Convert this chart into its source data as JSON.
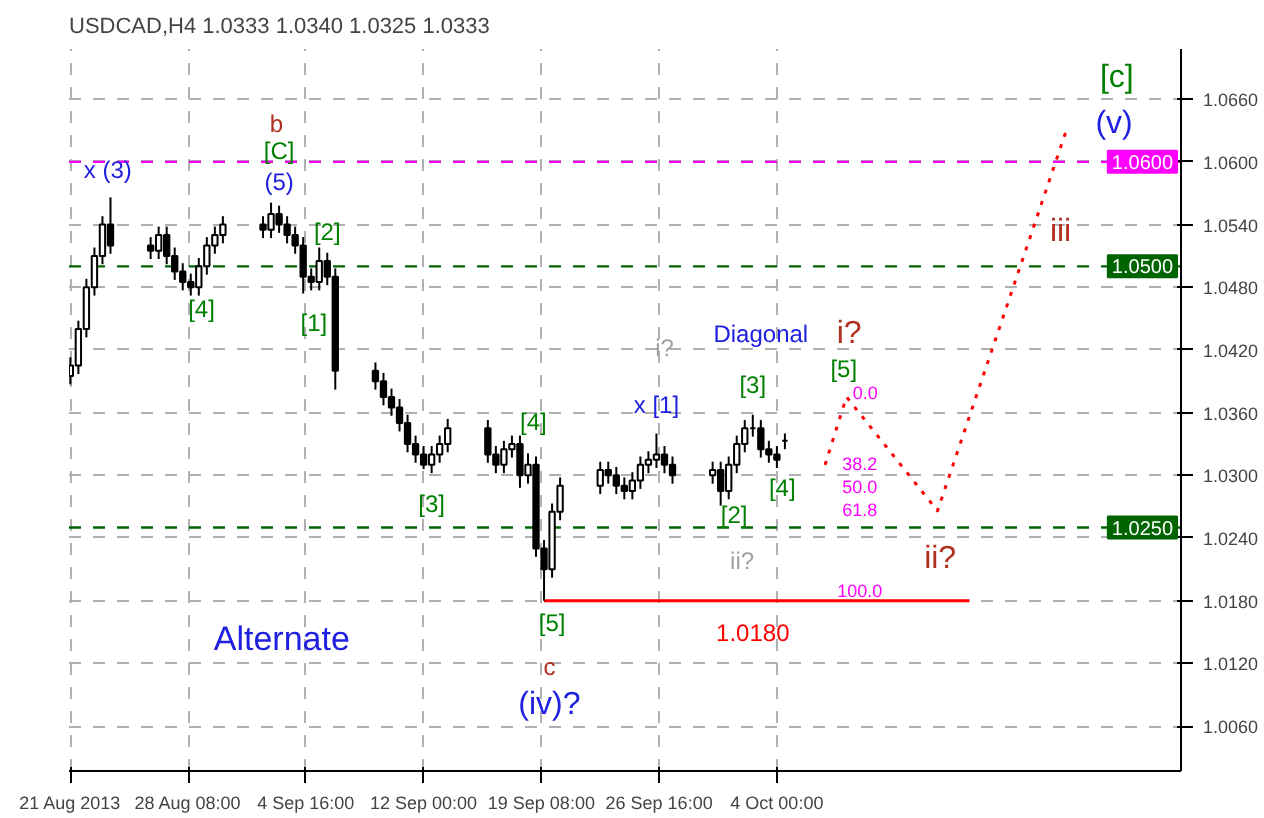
{
  "chart_data": {
    "type": "candlestick",
    "title": "USDCAD,H4  1.0333 1.0340 1.0325 1.0333",
    "x": [
      "2013-08-21T00:00",
      "2013-08-21T12:00",
      "2013-08-22T00:00",
      "2013-08-22T12:00",
      "2013-08-23T00:00",
      "2013-08-23T12:00",
      "2013-08-26T00:00",
      "2013-08-26T12:00",
      "2013-08-27T00:00",
      "2013-08-27T12:00",
      "2013-08-28T00:00",
      "2013-08-28T12:00",
      "2013-08-29T00:00",
      "2013-08-29T12:00",
      "2013-08-30T00:00",
      "2013-08-30T12:00",
      "2013-09-02T00:00",
      "2013-09-02T12:00",
      "2013-09-03T00:00",
      "2013-09-03T12:00",
      "2013-09-04T00:00",
      "2013-09-04T12:00",
      "2013-09-05T00:00",
      "2013-09-05T12:00",
      "2013-09-06T00:00",
      "2013-09-06T12:00",
      "2013-09-09T00:00",
      "2013-09-09T12:00",
      "2013-09-10T00:00",
      "2013-09-10T12:00",
      "2013-09-11T00:00",
      "2013-09-11T12:00",
      "2013-09-12T00:00",
      "2013-09-12T12:00",
      "2013-09-13T00:00",
      "2013-09-13T12:00",
      "2013-09-16T00:00",
      "2013-09-16T12:00",
      "2013-09-17T00:00",
      "2013-09-17T12:00",
      "2013-09-18T00:00",
      "2013-09-18T12:00",
      "2013-09-19T00:00",
      "2013-09-19T12:00",
      "2013-09-20T00:00",
      "2013-09-20T12:00",
      "2013-09-23T00:00",
      "2013-09-23T12:00",
      "2013-09-24T00:00",
      "2013-09-24T12:00",
      "2013-09-25T00:00",
      "2013-09-25T12:00",
      "2013-09-26T00:00",
      "2013-09-26T12:00",
      "2013-09-27T00:00",
      "2013-09-27T12:00",
      "2013-09-30T00:00",
      "2013-09-30T12:00",
      "2013-10-01T00:00",
      "2013-10-01T12:00",
      "2013-10-02T00:00",
      "2013-10-02T12:00",
      "2013-10-03T00:00",
      "2013-10-03T12:00",
      "2013-10-04T00:00",
      "2013-10-04T12:00"
    ],
    "ohlc": [
      [
        1.0395,
        1.0413,
        1.0387,
        1.0405
      ],
      [
        1.0405,
        1.0448,
        1.0397,
        1.044
      ],
      [
        1.044,
        1.0488,
        1.0432,
        1.048
      ],
      [
        1.048,
        1.0518,
        1.0472,
        1.051
      ],
      [
        1.051,
        1.0548,
        1.0502,
        1.054
      ],
      [
        1.054,
        1.0566,
        1.0512,
        1.052
      ],
      [
        1.052,
        1.0528,
        1.0507,
        1.0515
      ],
      [
        1.0515,
        1.0538,
        1.0507,
        1.053
      ],
      [
        1.053,
        1.0538,
        1.0502,
        1.051
      ],
      [
        1.051,
        1.0518,
        1.0487,
        1.0495
      ],
      [
        1.0495,
        1.0503,
        1.0477,
        1.0485
      ],
      [
        1.0485,
        1.0493,
        1.0472,
        1.048
      ],
      [
        1.048,
        1.0508,
        1.0472,
        1.05
      ],
      [
        1.05,
        1.0528,
        1.0492,
        1.052
      ],
      [
        1.052,
        1.0538,
        1.0512,
        1.053
      ],
      [
        1.053,
        1.0548,
        1.0522,
        1.054
      ],
      [
        1.054,
        1.0548,
        1.0527,
        1.0535
      ],
      [
        1.0535,
        1.0561,
        1.0527,
        1.055
      ],
      [
        1.055,
        1.0558,
        1.0532,
        1.054
      ],
      [
        1.054,
        1.0548,
        1.0522,
        1.053
      ],
      [
        1.053,
        1.0538,
        1.0512,
        1.052
      ],
      [
        1.052,
        1.0528,
        1.0474,
        1.049
      ],
      [
        1.049,
        1.0498,
        1.0477,
        1.0485
      ],
      [
        1.0485,
        1.0518,
        1.0477,
        1.0505
      ],
      [
        1.0505,
        1.0513,
        1.0482,
        1.049
      ],
      [
        1.049,
        1.0498,
        1.0382,
        1.04
      ],
      [
        1.04,
        1.0408,
        1.0382,
        1.039
      ],
      [
        1.039,
        1.0398,
        1.0367,
        1.0375
      ],
      [
        1.0375,
        1.0383,
        1.0357,
        1.0365
      ],
      [
        1.0365,
        1.0373,
        1.0342,
        1.035
      ],
      [
        1.035,
        1.0358,
        1.0322,
        1.033
      ],
      [
        1.033,
        1.0338,
        1.0312,
        1.032
      ],
      [
        1.032,
        1.0328,
        1.0306,
        1.031
      ],
      [
        1.031,
        1.0328,
        1.0302,
        1.032
      ],
      [
        1.032,
        1.0338,
        1.0312,
        1.033
      ],
      [
        1.033,
        1.0354,
        1.0322,
        1.0345
      ],
      [
        1.0345,
        1.0353,
        1.0312,
        1.032
      ],
      [
        1.032,
        1.0328,
        1.0302,
        1.031
      ],
      [
        1.031,
        1.0333,
        1.0302,
        1.0325
      ],
      [
        1.0325,
        1.0338,
        1.0317,
        1.033
      ],
      [
        1.033,
        1.0338,
        1.0288,
        1.03
      ],
      [
        1.03,
        1.0321,
        1.0292,
        1.031
      ],
      [
        1.031,
        1.0318,
        1.0222,
        1.023
      ],
      [
        1.023,
        1.0238,
        1.018,
        1.021
      ],
      [
        1.021,
        1.0273,
        1.0202,
        1.0265
      ],
      [
        1.0265,
        1.0298,
        1.0257,
        1.029
      ],
      [
        1.029,
        1.0313,
        1.0282,
        1.0305
      ],
      [
        1.0305,
        1.0313,
        1.0292,
        1.03
      ],
      [
        1.03,
        1.0308,
        1.0282,
        1.029
      ],
      [
        1.029,
        1.0298,
        1.0277,
        1.0285
      ],
      [
        1.0285,
        1.0303,
        1.0277,
        1.0295
      ],
      [
        1.0295,
        1.0318,
        1.0287,
        1.031
      ],
      [
        1.031,
        1.0323,
        1.0302,
        1.0315
      ],
      [
        1.0315,
        1.034,
        1.0307,
        1.032
      ],
      [
        1.032,
        1.0328,
        1.0302,
        1.031
      ],
      [
        1.031,
        1.0318,
        1.0292,
        1.03
      ],
      [
        1.03,
        1.0313,
        1.0292,
        1.0305
      ],
      [
        1.0305,
        1.0313,
        1.0271,
        1.0285
      ],
      [
        1.0285,
        1.0318,
        1.0277,
        1.031
      ],
      [
        1.031,
        1.0338,
        1.0302,
        1.033
      ],
      [
        1.033,
        1.0353,
        1.0322,
        1.0345
      ],
      [
        1.0345,
        1.0358,
        1.0337,
        1.0345
      ],
      [
        1.0345,
        1.0353,
        1.0317,
        1.0325
      ],
      [
        1.0325,
        1.0333,
        1.0312,
        1.032
      ],
      [
        1.032,
        1.0328,
        1.0307,
        1.0315
      ],
      [
        1.0333,
        1.034,
        1.0325,
        1.0333
      ]
    ],
    "color": "#000000",
    "series": [
      {
        "type": "line",
        "color": "#ff0000",
        "line_style": "solid",
        "x": [
          "2013-09-19T12:00",
          "2013-10-16T00:00"
        ],
        "values": [
          1.018,
          1.018
        ]
      },
      {
        "type": "line",
        "color": "#ff0000",
        "line_style": "dotted",
        "x": [
          "2013-10-07T00:00",
          "2013-10-08T08:00",
          "2013-10-14T00:00",
          "2013-10-22T00:00"
        ],
        "values": [
          1.031,
          1.0375,
          1.0266,
          1.0629
        ]
      }
    ],
    "xlim": [
      "2013-08-20T22:00",
      "2013-10-29T04:00"
    ],
    "ylim": [
      1.0017,
      1.0708
    ],
    "xticks": [
      {
        "value": "2013-08-21T00:00",
        "label": "21 Aug 2013"
      },
      {
        "value": "2013-08-28T08:00",
        "label": "28 Aug 08:00"
      },
      {
        "value": "2013-09-04T16:00",
        "label": "4 Sep 16:00"
      },
      {
        "value": "2013-09-12T00:00",
        "label": "12 Sep 00:00"
      },
      {
        "value": "2013-09-19T08:00",
        "label": "19 Sep 08:00"
      },
      {
        "value": "2013-09-26T16:00",
        "label": "26 Sep 16:00"
      },
      {
        "value": "2013-10-04T00:00",
        "label": "4 Oct 00:00"
      }
    ],
    "yticks": [
      {
        "value": 1.006,
        "label": "1.0060"
      },
      {
        "value": 1.012,
        "label": "1.0120"
      },
      {
        "value": 1.018,
        "label": "1.0180"
      },
      {
        "value": 1.024,
        "label": "1.0240"
      },
      {
        "value": 1.03,
        "label": "1.0300"
      },
      {
        "value": 1.036,
        "label": "1.0360"
      },
      {
        "value": 1.042,
        "label": "1.0420"
      },
      {
        "value": 1.048,
        "label": "1.0480"
      },
      {
        "value": 1.054,
        "label": "1.0540"
      },
      {
        "value": 1.06,
        "label": "1.0600"
      },
      {
        "value": 1.066,
        "label": "1.0660"
      }
    ],
    "grid": true,
    "ref_lines": [
      {
        "axis": "y",
        "value": 1.06,
        "label": "1.0600",
        "color": "#ff00ff",
        "line_style": "dashed"
      },
      {
        "axis": "y",
        "value": 1.05,
        "label": "1.0500",
        "color": "#006400",
        "line_style": "dashed"
      },
      {
        "axis": "y",
        "value": 1.025,
        "label": "1.0250",
        "color": "#006400",
        "line_style": "dashed"
      }
    ],
    "annotations": [
      "x (3)",
      "b",
      "[C]",
      "(5)",
      "[4]",
      "[2]",
      "[1]",
      "[3]",
      "[4]",
      "[5]",
      "c",
      "(iv)?",
      "Alternate",
      "1.0180",
      "x [1]",
      "[2]",
      "[3]",
      "[4]",
      "i?",
      "Diagonal",
      "i?",
      "[5]",
      "ii?",
      "ii?",
      "iii",
      "[c]",
      "(v)",
      "0.0",
      "38.2",
      "50.0",
      "61.8",
      "100.0"
    ]
  }
}
